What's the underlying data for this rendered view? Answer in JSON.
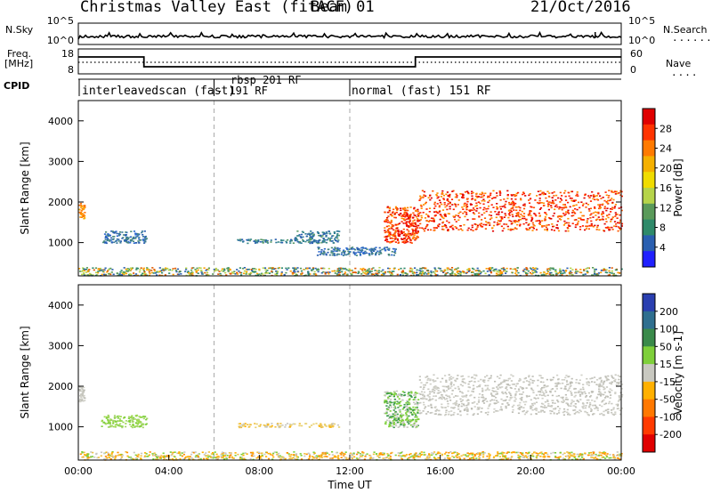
{
  "header": {
    "title": "Christmas Valley East (fitACF)",
    "beam": "Beam 01",
    "date": "21/Oct/2016"
  },
  "summary_panels": {
    "nsky_label": "N.Sky",
    "nsearch_label": "N.Search",
    "nsearch_legend": "......",
    "freq_label_line1": "Freq.",
    "freq_label_line2": "[MHz]",
    "nave_label": "Nave",
    "nave_legend": "....",
    "cpid_label": "CPID",
    "noise_ticks": [
      "10^5",
      "10^0"
    ],
    "noise_right_ticks": [
      "10^5",
      "10^0"
    ],
    "freq_ticks": [
      "18",
      "8"
    ],
    "nave_ticks": [
      "60",
      "0"
    ],
    "modes": [
      {
        "text": "interleavedscan (fast)"
      },
      {
        "text": "rbsp 201 RF"
      },
      {
        "text": "- 191 RF"
      },
      {
        "text": "normal (fast) 151 RF"
      }
    ]
  },
  "power_colorbar": {
    "label": "Power [dB]",
    "ticks": [
      "28",
      "24",
      "20",
      "16",
      "12",
      "8",
      "4"
    ],
    "colors": [
      "#e00000",
      "#ff3300",
      "#ff7a00",
      "#f5b000",
      "#f0dc00",
      "#b6d44a",
      "#5a9a5a",
      "#2f8a6a",
      "#2a5fb0",
      "#2020ff"
    ]
  },
  "velocity_colorbar": {
    "label": "Velocity [m s-1]",
    "ticks": [
      "200",
      "100",
      "50",
      "15",
      "-15",
      "-50",
      "-100",
      "-200"
    ],
    "colors": [
      "#2a3fb0",
      "#2f6f8f",
      "#3a8a4a",
      "#7ecf3a",
      "#c8c8c0",
      "#ffb000",
      "#ff7800",
      "#ff3a00",
      "#e00000"
    ]
  },
  "chart_data": [
    {
      "type": "heatmap",
      "name": "power",
      "xlabel": "",
      "ylabel": "Slant Range [km]",
      "xlim": [
        0,
        24
      ],
      "ylim": [
        180,
        4500
      ],
      "yticks": [
        "1000",
        "2000",
        "3000",
        "4000"
      ],
      "regions": [
        {
          "x": [
            0.0,
            0.25
          ],
          "y": [
            1600,
            2000
          ],
          "level": "orange"
        },
        {
          "x": [
            1.0,
            3.0
          ],
          "y": [
            1000,
            1300
          ],
          "level": "blue"
        },
        {
          "x": [
            7.0,
            9.5
          ],
          "y": [
            1000,
            1100
          ],
          "level": "teal"
        },
        {
          "x": [
            9.5,
            11.5
          ],
          "y": [
            1000,
            1300
          ],
          "level": "teal"
        },
        {
          "x": [
            10.5,
            14.0
          ],
          "y": [
            700,
            900
          ],
          "level": "blue"
        },
        {
          "x": [
            13.5,
            15.0
          ],
          "y": [
            1000,
            1900
          ],
          "level": "red"
        },
        {
          "x": [
            15.0,
            24.0
          ],
          "y": [
            1300,
            2300
          ],
          "level": "red"
        },
        {
          "x": [
            0.0,
            24.0
          ],
          "y": [
            200,
            400
          ],
          "level": "mixed"
        }
      ]
    },
    {
      "type": "heatmap",
      "name": "velocity",
      "xlabel": "Time UT",
      "ylabel": "Slant Range [km]",
      "xlim": [
        0,
        24
      ],
      "ylim": [
        180,
        4500
      ],
      "xticks": [
        "00:00",
        "04:00",
        "08:00",
        "12:00",
        "16:00",
        "20:00",
        "00:00"
      ],
      "yticks": [
        "1000",
        "2000",
        "3000",
        "4000"
      ],
      "regions": [
        {
          "x": [
            0.0,
            0.25
          ],
          "y": [
            1600,
            2000
          ],
          "level": "grey"
        },
        {
          "x": [
            1.0,
            3.0
          ],
          "y": [
            1000,
            1300
          ],
          "level": "light-green"
        },
        {
          "x": [
            7.0,
            11.5
          ],
          "y": [
            1000,
            1100
          ],
          "level": "yellow"
        },
        {
          "x": [
            13.5,
            15.0
          ],
          "y": [
            1000,
            1900
          ],
          "level": "green"
        },
        {
          "x": [
            15.0,
            24.0
          ],
          "y": [
            1300,
            2300
          ],
          "level": "grey"
        },
        {
          "x": [
            0.0,
            24.0
          ],
          "y": [
            200,
            400
          ],
          "level": "mixed"
        }
      ]
    }
  ]
}
